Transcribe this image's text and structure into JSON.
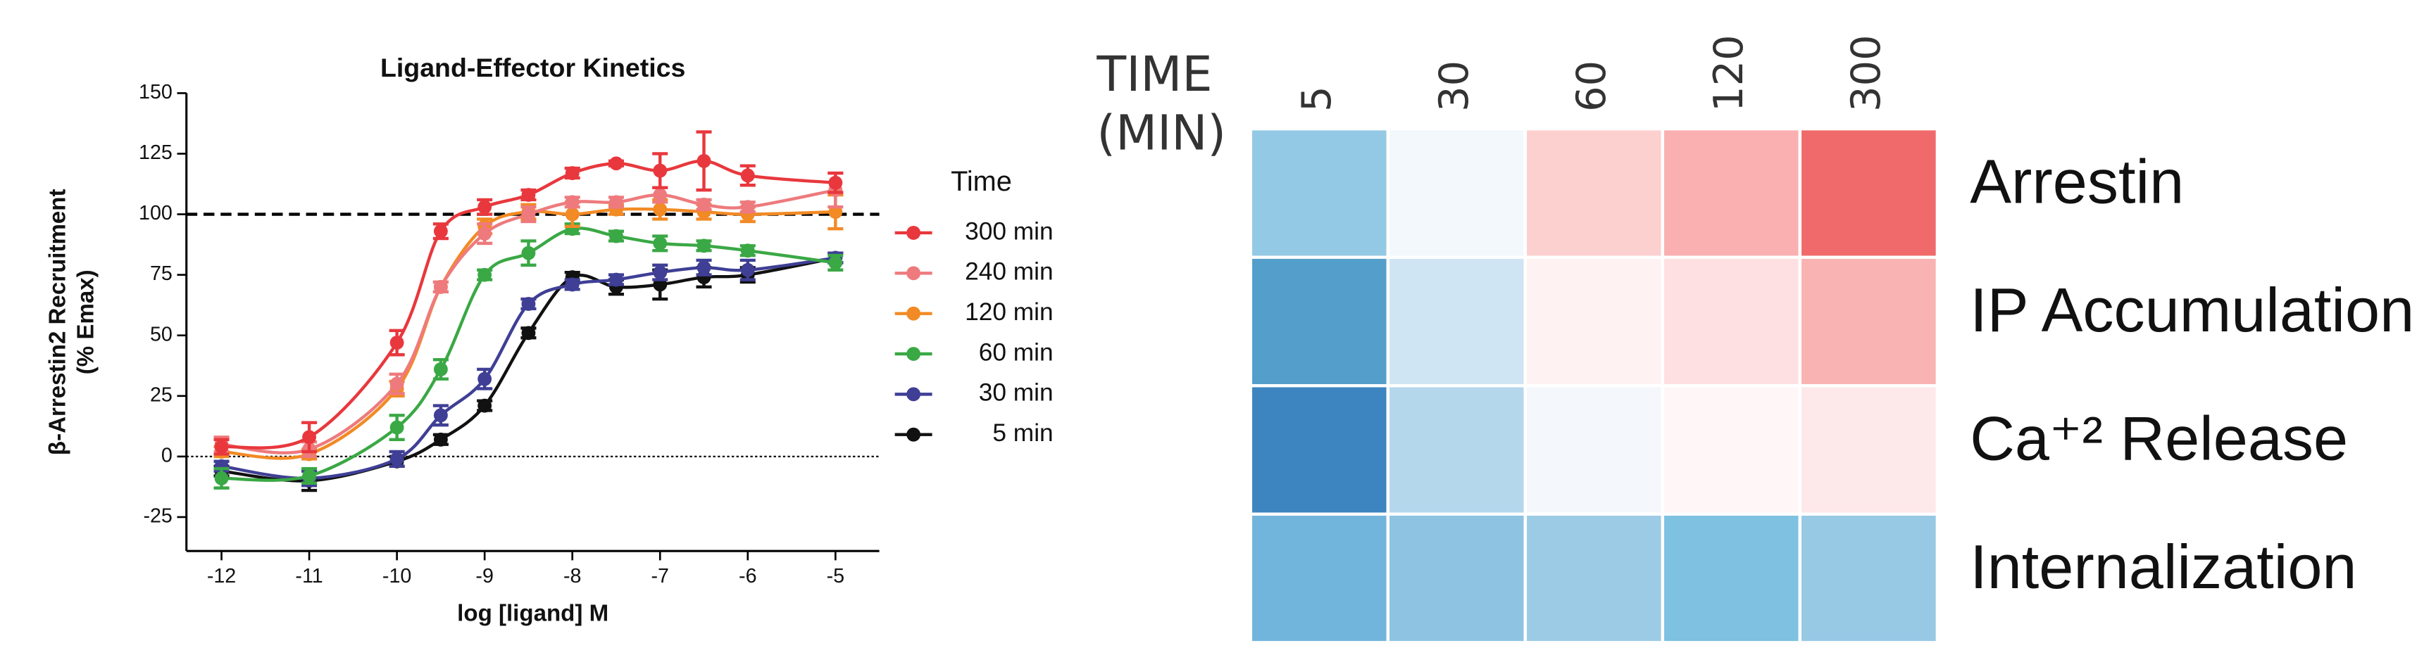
{
  "chart_data": [
    {
      "type": "line",
      "title": "Ligand-Effector Kinetics",
      "x_label": "log [ligand] M",
      "y_label": [
        "β-Arrestin2 Recruitment",
        "(% Emax)"
      ],
      "x": [
        -12,
        -11,
        -10,
        -9.5,
        -9,
        -8.5,
        -8,
        -7.5,
        -7,
        -6.5,
        -6,
        -5
      ],
      "xlim": [
        -12.4,
        -4.5
      ],
      "xticks": [
        -12,
        -11,
        -10,
        -9,
        -8,
        -7,
        -6,
        -5
      ],
      "ylim": [
        -39,
        150
      ],
      "yticks": [
        -25,
        0,
        25,
        50,
        75,
        100,
        125,
        150
      ],
      "hlines": [
        {
          "value": 100,
          "style": "dashed"
        },
        {
          "value": 0,
          "style": "dotted"
        }
      ],
      "legend_title": "Time",
      "legend": "right",
      "series": [
        {
          "name": "300 min",
          "color": "#e8383d",
          "values": [
            4,
            8,
            47,
            93,
            103,
            108,
            117,
            121,
            118,
            122,
            116,
            113
          ],
          "errors": [
            3,
            6,
            5,
            3,
            3,
            2,
            2,
            1,
            7,
            12,
            4,
            4
          ]
        },
        {
          "name": "240 min",
          "color": "#ee7a7d",
          "values": [
            5,
            3,
            30,
            70,
            92,
            100,
            105,
            105,
            108,
            104,
            103,
            110
          ],
          "errors": [
            3,
            3,
            4,
            2,
            4,
            3,
            2,
            2,
            3,
            2,
            2,
            7
          ]
        },
        {
          "name": "120 min",
          "color": "#f28a25",
          "values": [
            2,
            1,
            28,
            70,
            95,
            101,
            100,
            102,
            102,
            101,
            100,
            101
          ],
          "errors": [
            2,
            2,
            3,
            2,
            3,
            3,
            5,
            2,
            4,
            3,
            3,
            7
          ]
        },
        {
          "name": "60 min",
          "color": "#3aa845",
          "values": [
            -9,
            -8,
            12,
            36,
            75,
            84,
            94,
            91,
            88,
            87,
            85,
            80
          ],
          "errors": [
            4,
            3,
            5,
            4,
            2,
            5,
            2,
            2,
            3,
            2,
            2,
            3
          ]
        },
        {
          "name": "30 min",
          "color": "#3f3f96",
          "values": [
            -4,
            -9,
            -1,
            17,
            32,
            63,
            71,
            73,
            76,
            78,
            77,
            82
          ],
          "errors": [
            2,
            3,
            3,
            4,
            4,
            2,
            2,
            2,
            3,
            3,
            4,
            2
          ]
        },
        {
          "name": "5 min",
          "color": "#111111",
          "values": [
            -6,
            -10,
            -2,
            7,
            21,
            51,
            74,
            70,
            71,
            74,
            75,
            82
          ],
          "errors": [
            2,
            4,
            2,
            2,
            2,
            2,
            2,
            3,
            6,
            4,
            3,
            2
          ]
        }
      ]
    },
    {
      "type": "heatmap",
      "header": [
        "TIME",
        "(MIN)"
      ],
      "columns": [
        "5",
        "30",
        "60",
        "120",
        "300"
      ],
      "rows": [
        "Arrestin",
        "IP Accumulation",
        "Ca⁺² Release",
        "Internalization"
      ],
      "colors": [
        [
          "#93c9e4",
          "#f3f8fc",
          "#fdd0d0",
          "#fab0b1",
          "#f06a6b"
        ],
        [
          "#549ecb",
          "#d0e5f3",
          "#fff2f2",
          "#fee0e2",
          "#f9b3b3"
        ],
        [
          "#3d85c0",
          "#b5d7ec",
          "#f4f8fc",
          "#fff7f7",
          "#fde8ea"
        ],
        [
          "#72b5dc",
          "#8ec3e2",
          "#9ccbe6",
          "#7ec1e1",
          "#97c8e4"
        ]
      ]
    }
  ]
}
